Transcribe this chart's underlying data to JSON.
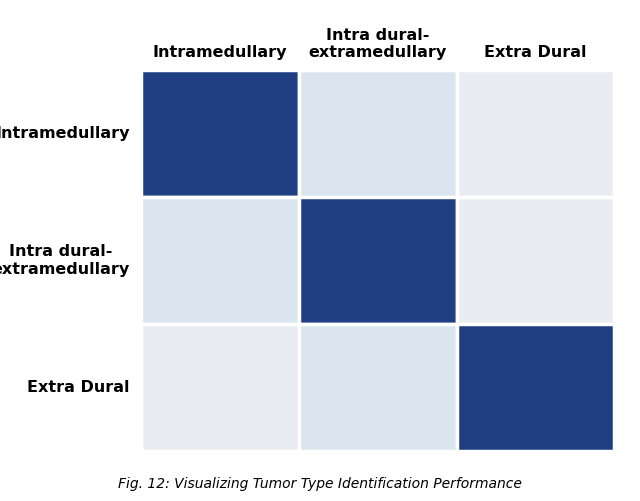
{
  "col_labels": [
    "Intramedullary",
    "Intra dural-\nextramedullary",
    "Extra Dural"
  ],
  "row_labels": [
    "Intramedullary",
    "Intra dural-\nextramedullary",
    "Extra Dural"
  ],
  "matrix": [
    [
      0.9,
      0.35,
      0.05
    ],
    [
      0.35,
      0.9,
      0.05
    ],
    [
      0.05,
      0.35,
      0.9
    ]
  ],
  "dark_blue": "#1f3f82",
  "light_blue": "#bcd4ea",
  "very_light": "#e9edf2",
  "background": "#ffffff",
  "col_label_fontsize": 11.5,
  "row_label_fontsize": 11.5,
  "caption": "Fig. 12: Visualizing Tumor Type Identification Performance",
  "figsize": [
    6.4,
    5.01
  ],
  "dpi": 100
}
